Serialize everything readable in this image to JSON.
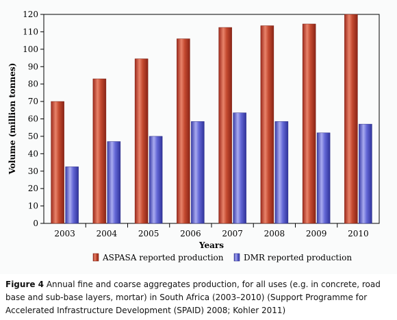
{
  "chart_data": {
    "type": "bar",
    "categories": [
      "2003",
      "2004",
      "2005",
      "2006",
      "2007",
      "2008",
      "2009",
      "2010"
    ],
    "series": [
      {
        "name": "ASPASA reported production",
        "values": [
          70,
          83,
          94.5,
          106,
          112.5,
          113.5,
          114.5,
          120
        ],
        "color": "#c0392b"
      },
      {
        "name": "DMR reported production",
        "values": [
          32.5,
          47,
          50,
          58.5,
          63.5,
          58.5,
          52,
          57
        ],
        "color": "#5b5fd0"
      }
    ],
    "title": "",
    "xlabel": "Years",
    "ylabel": "Volume (million tonnes)",
    "ylim": [
      0,
      120
    ],
    "yticks": [
      0,
      10,
      20,
      30,
      40,
      50,
      60,
      70,
      80,
      90,
      100,
      110,
      120
    ],
    "grid": false,
    "legend_position": "bottom"
  },
  "caption": {
    "label": "Figure 4",
    "text": " Annual fine and coarse aggregates production, for all uses (e.g. in concrete, road base and sub-base layers, mortar) in South Africa (2003–2010) (Support Programme for Accelerated Infrastructure Development (SPAID) 2008; Kohler 2011)"
  }
}
